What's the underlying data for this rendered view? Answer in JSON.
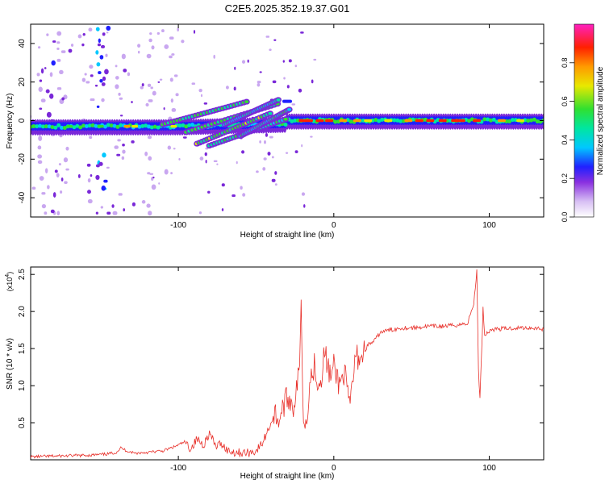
{
  "title": "C2E5.2025.352.19.37.G01",
  "spectrogram": {
    "type": "heatmap",
    "xlabel": "Height of straight line (km)",
    "ylabel": "Frequency (Hz)",
    "xlim": [
      -195,
      135
    ],
    "ylim": [
      -50,
      50
    ],
    "xticks": [
      -100,
      0,
      100
    ],
    "xticklabels": [
      "-100",
      "0",
      "100"
    ],
    "yticks": [
      -40,
      -20,
      0,
      20,
      40
    ],
    "yticklabels": [
      "-40",
      "-20",
      "0",
      "20",
      "40"
    ],
    "colorbar": {
      "label": "Normalized spectral amplitude",
      "ticks": [
        0.0,
        0.2,
        0.4,
        0.6,
        0.8
      ],
      "ticklabels": [
        "0.0",
        "0.2",
        "0.4",
        "0.6",
        "0.8"
      ],
      "colors": [
        "#ffffff",
        "#c9a7f0",
        "#7a28d8",
        "#2020ff",
        "#00c8ff",
        "#00e6a0",
        "#30e030",
        "#e8e800",
        "#ff9a00",
        "#ff2000",
        "#ff20c0"
      ]
    }
  },
  "chart_data": {
    "type": "line",
    "xlabel": "Height of straight line (km)",
    "ylabel": "SNR (10 * v/v)",
    "yscale_label": "(x10",
    "yscale_exp": "4",
    "xlim": [
      -195,
      135
    ],
    "ylim": [
      0,
      2.6
    ],
    "xticks": [
      -100,
      0,
      100
    ],
    "xticklabels": [
      "-100",
      "0",
      "100"
    ],
    "yticks": [
      0.5,
      1.0,
      1.5,
      2.0,
      2.5
    ],
    "yticklabels": [
      "0.5",
      "1.0",
      "1.5",
      "2.0",
      "2.5"
    ],
    "color": "#e8302a",
    "series": [
      {
        "name": "SNR",
        "x": [
          -195,
          -180,
          -160,
          -150,
          -145,
          -140,
          -137,
          -133,
          -128,
          -120,
          -110,
          -102,
          -96,
          -92,
          -88,
          -84,
          -80,
          -76,
          -72,
          -68,
          -62,
          -56,
          -50,
          -46,
          -42,
          -38,
          -35,
          -32,
          -29,
          -26,
          -24,
          -22,
          -21,
          -20,
          -19,
          -17,
          -15,
          -12,
          -10,
          -8,
          -6,
          -4,
          -2,
          0,
          2,
          4,
          6,
          8,
          10,
          14,
          18,
          22,
          26,
          30,
          36,
          44,
          52,
          60,
          70,
          80,
          86,
          90,
          92,
          93,
          94,
          95,
          96,
          97,
          99,
          102,
          110,
          120,
          130,
          135
        ],
        "y": [
          0.04,
          0.05,
          0.06,
          0.07,
          0.08,
          0.1,
          0.16,
          0.12,
          0.09,
          0.1,
          0.12,
          0.18,
          0.24,
          0.15,
          0.28,
          0.2,
          0.36,
          0.18,
          0.22,
          0.12,
          0.1,
          0.09,
          0.12,
          0.22,
          0.42,
          0.62,
          0.55,
          0.75,
          0.85,
          0.72,
          0.95,
          1.2,
          2.28,
          0.9,
          0.4,
          0.7,
          1.1,
          1.3,
          1.0,
          1.15,
          1.45,
          1.28,
          1.1,
          1.25,
          1.12,
          1.0,
          1.2,
          1.05,
          0.68,
          1.38,
          1.4,
          1.55,
          1.6,
          1.72,
          1.75,
          1.78,
          1.78,
          1.8,
          1.8,
          1.82,
          1.84,
          2.1,
          2.55,
          1.2,
          0.85,
          1.4,
          2.05,
          1.68,
          1.72,
          1.76,
          1.77,
          1.78,
          1.78,
          1.76
        ]
      }
    ]
  }
}
